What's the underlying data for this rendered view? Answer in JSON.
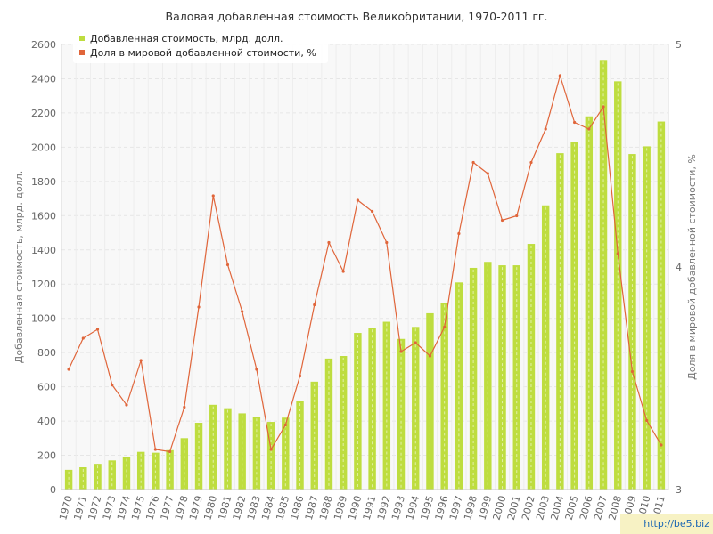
{
  "chart_data": {
    "type": "bar",
    "title": "Валовая добавленная стоимость Великобритании, 1970-2011 гг.",
    "ylabel": "Добавленная стоимость, млрд. долл.",
    "y2label": "Доля в мировой добавленной стоимости, %",
    "ylim": [
      0,
      2600
    ],
    "y2lim": [
      3,
      5
    ],
    "yticks": [
      "0",
      "200",
      "400",
      "600",
      "800",
      "1000",
      "1200",
      "1400",
      "1600",
      "1800",
      "2000",
      "2200",
      "2400",
      "2600"
    ],
    "y2ticks": [
      "3",
      "4",
      "5"
    ],
    "legend_position": "top-left",
    "grid": true,
    "categories": [
      "1970",
      "1971",
      "1972",
      "1973",
      "1974",
      "1975",
      "1976",
      "1977",
      "1978",
      "1979",
      "1980",
      "1981",
      "1982",
      "1983",
      "1984",
      "1985",
      "1986",
      "1987",
      "1988",
      "1989",
      "1990",
      "1991",
      "1992",
      "1993",
      "1994",
      "1995",
      "1996",
      "1997",
      "1998",
      "1999",
      "2000",
      "2001",
      "2002",
      "2003",
      "2004",
      "2005",
      "2006",
      "2007",
      "2008",
      "2009",
      "2010",
      "2011"
    ],
    "series": [
      {
        "name": "Добавленная стоимость, млрд. долл.",
        "type": "bar",
        "axis": "left",
        "color": "#bedd3f",
        "values": [
          115,
          130,
          150,
          170,
          190,
          220,
          215,
          230,
          300,
          390,
          495,
          475,
          445,
          425,
          395,
          420,
          515,
          630,
          765,
          780,
          915,
          945,
          980,
          880,
          950,
          1030,
          1090,
          1210,
          1295,
          1330,
          1310,
          1310,
          1435,
          1660,
          1965,
          2030,
          2180,
          2510,
          2385,
          1960,
          2005,
          2150
        ]
      },
      {
        "name": "Доля в мировой добавленной стоимости, %",
        "type": "line",
        "axis": "right",
        "color": "#e0653a",
        "values": [
          3.54,
          3.68,
          3.72,
          3.47,
          3.38,
          3.58,
          3.18,
          3.17,
          3.37,
          3.82,
          4.32,
          4.01,
          3.8,
          3.54,
          3.18,
          3.29,
          3.51,
          3.83,
          4.11,
          3.98,
          4.3,
          4.25,
          4.11,
          3.62,
          3.66,
          3.6,
          3.73,
          4.15,
          4.47,
          4.42,
          4.21,
          4.23,
          4.47,
          4.62,
          4.86,
          4.65,
          4.62,
          4.72,
          4.06,
          3.53,
          3.31,
          3.2
        ]
      }
    ]
  },
  "watermark": "http://be5.biz"
}
